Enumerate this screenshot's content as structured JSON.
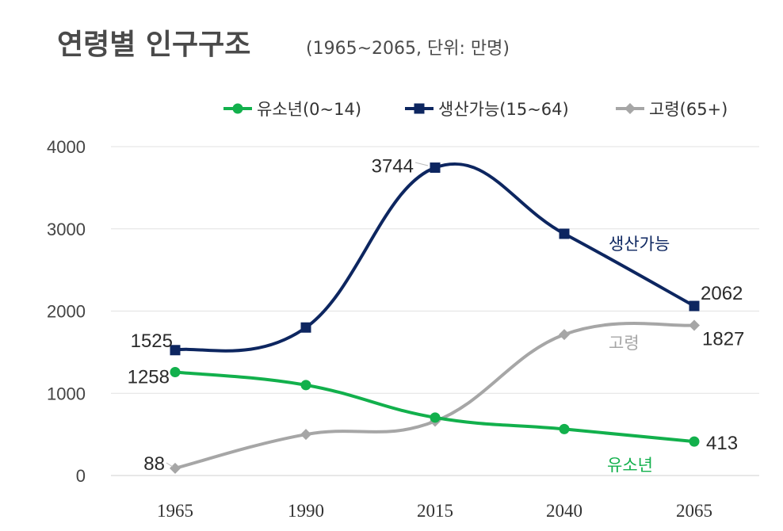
{
  "chart_data": {
    "type": "line",
    "title": "연령별 인구구조",
    "subtitle": "(1965~2065, 단위: 만명)",
    "categories": [
      "1965",
      "1990",
      "2015",
      "2040",
      "2065"
    ],
    "ylim": [
      0,
      4000
    ],
    "yticks": [
      "0",
      "1000",
      "2000",
      "3000",
      "4000"
    ],
    "grid": true,
    "legend_position": "top-right",
    "series": [
      {
        "name": "유소년(0~14)",
        "label": "유소년",
        "color": "#12b04c",
        "marker": "circle",
        "values": [
          1258,
          1100,
          705,
          565,
          413
        ],
        "data_labels": [
          "1258",
          "",
          "",
          "",
          "413"
        ]
      },
      {
        "name": "생산가능(15~64)",
        "label": "생산가능",
        "color": "#0d2660",
        "marker": "square",
        "values": [
          1525,
          1800,
          3744,
          2940,
          2062
        ],
        "data_labels": [
          "1525",
          "",
          "3744",
          "",
          "2062"
        ]
      },
      {
        "name": "고령(65+)",
        "label": "고령",
        "color": "#a6a6a6",
        "marker": "diamond",
        "values": [
          88,
          500,
          660,
          1715,
          1827
        ],
        "data_labels": [
          "88",
          "",
          "",
          "",
          "1827"
        ]
      }
    ]
  }
}
